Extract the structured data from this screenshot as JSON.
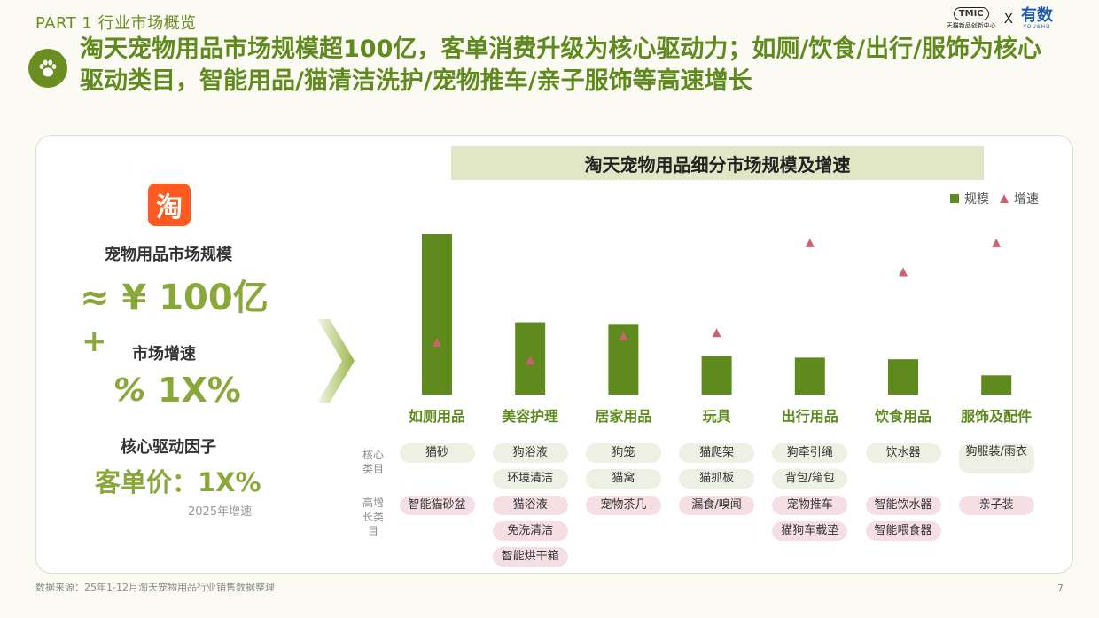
{
  "part_label": "PART 1 行业市场概览",
  "logos": {
    "tmic": "TMIC",
    "tmic_sub": "天猫新品创新中心",
    "x": "X",
    "youshu_cn": "有数",
    "youshu_en": "YOUSHU"
  },
  "headline": "淘天宠物用品市场规模超100亿，客单消费升级为核心驱动力；如厕/饮食/出行/服饰为核心驱动类目，智能用品/猫清洁洗护/宠物推车/亲子服饰等高速增长",
  "left_panel": {
    "taobao_icon": "淘",
    "market_size_label": "宠物用品市场规模",
    "market_size_value": "≈ ¥ 100亿",
    "plus": "+",
    "growth_label": "市场增速",
    "growth_icon": "%",
    "growth_value": "1X%",
    "driver_label": "核心驱动因子",
    "driver_value": "客单价：1X%",
    "driver_note": "2025年增速"
  },
  "colors": {
    "bar": "#5f8a1d",
    "triangle": "#cd6174",
    "accent": "#8aa83a"
  },
  "chart_data": {
    "type": "bar",
    "title": "淘天宠物用品细分市场规模及增速",
    "legend": {
      "size": "规模",
      "growth": "增速",
      "position": "top-right"
    },
    "categories": [
      "如厕用品",
      "美容护理",
      "居家用品",
      "玩具",
      "出行用品",
      "饮食用品",
      "服饰及配件"
    ],
    "series": [
      {
        "name": "规模",
        "marker": "bar",
        "values": [
          100,
          45,
          44,
          24,
          23,
          22,
          12
        ]
      },
      {
        "name": "增速",
        "marker": "triangle",
        "values": [
          32,
          21,
          36,
          38,
          94,
          76,
          94
        ]
      }
    ],
    "ylim": [
      0,
      100
    ],
    "axes_visible": false
  },
  "table": {
    "core_label": "核心类目",
    "fast_label": "高增长类目",
    "core": [
      [
        "猫砂"
      ],
      [
        "狗浴液",
        "环境清洁"
      ],
      [
        "狗笼",
        "猫窝"
      ],
      [
        "猫爬架",
        "猫抓板"
      ],
      [
        "狗牵引绳",
        "背包/箱包"
      ],
      [
        "饮水器"
      ],
      [
        "狗服装/雨衣"
      ]
    ],
    "fast": [
      [
        "智能猫砂盆"
      ],
      [
        "猫浴液",
        "免洗清洁",
        "智能烘干箱"
      ],
      [
        "宠物茶几"
      ],
      [
        "漏食/嗅闻"
      ],
      [
        "宠物推车",
        "猫狗车载垫"
      ],
      [
        "智能饮水器",
        "智能喂食器"
      ],
      [
        "亲子装"
      ]
    ]
  },
  "footer": {
    "source": "数据来源：25年1-12月淘天宠物用品行业销售数据整理",
    "page": "7"
  }
}
